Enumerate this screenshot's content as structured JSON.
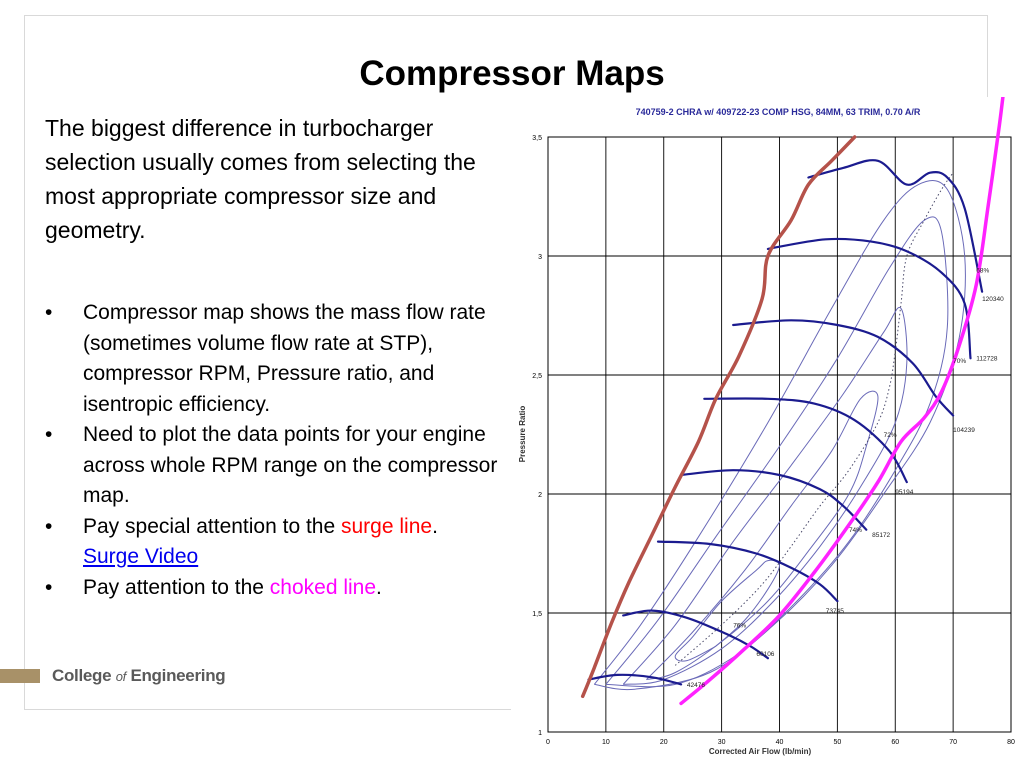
{
  "slide": {
    "title": "Compressor Maps",
    "intro": "The biggest difference in turbocharger selection usually comes from selecting the most appropriate compressor size and geometry.",
    "bullets": [
      {
        "text": "Compressor map shows the mass flow rate (sometimes volume flow rate at STP), compressor RPM, Pressure ratio, and isentropic efficiency."
      },
      {
        "text": "Need to plot the data points for your engine across whole RPM range on the compressor map."
      },
      {
        "pre": "Pay special attention to the ",
        "highlight": "surge line",
        "post": ".",
        "link": "Surge Video",
        "highlight_color": "#ff0000"
      },
      {
        "pre": "Pay attention to the ",
        "highlight": "choked line",
        "post": ".",
        "highlight_color": "#ff00ff"
      }
    ],
    "bullet_glyph": "•",
    "footer": {
      "college": "College",
      "of": "of",
      "engineering": "Engineering"
    }
  },
  "chart_data": {
    "type": "line",
    "title": "740759-2 CHRA w/ 409722-23 COMP HSG, 84MM, 63 TRIM, 0.70 A/R",
    "xlabel": "Corrected Air Flow (lb/min)",
    "ylabel": "Pressure Ratio",
    "xlim": [
      0,
      80
    ],
    "ylim": [
      1,
      3.5
    ],
    "xticks": [
      "0",
      "10",
      "20",
      "30",
      "40",
      "50",
      "60",
      "70",
      "80"
    ],
    "yticks": [
      "1",
      "1,5",
      "2",
      "2,5",
      "3",
      "3,5"
    ],
    "grid": true,
    "colors": {
      "speed": "#1b1b8f",
      "efficiency": "#6a6ab8",
      "surge": "#b5524a",
      "choke": "#ff22ff",
      "ops": "#4a4a6a"
    },
    "speed_lines": [
      {
        "label": "42476",
        "points": [
          [
            7,
            1.22
          ],
          [
            12,
            1.24
          ],
          [
            18,
            1.23
          ],
          [
            23,
            1.2
          ]
        ]
      },
      {
        "label": "60106",
        "points": [
          [
            13,
            1.49
          ],
          [
            18,
            1.51
          ],
          [
            24,
            1.48
          ],
          [
            31,
            1.41
          ],
          [
            35,
            1.36
          ],
          [
            38,
            1.31
          ]
        ]
      },
      {
        "label": "73745",
        "points": [
          [
            19,
            1.8
          ],
          [
            28,
            1.79
          ],
          [
            36,
            1.75
          ],
          [
            42,
            1.69
          ],
          [
            47,
            1.62
          ],
          [
            50,
            1.55
          ]
        ]
      },
      {
        "label": "85172",
        "points": [
          [
            23,
            2.08
          ],
          [
            32,
            2.1
          ],
          [
            40,
            2.08
          ],
          [
            47,
            2.02
          ],
          [
            51,
            1.95
          ],
          [
            55,
            1.85
          ]
        ]
      },
      {
        "label": "95194",
        "points": [
          [
            27,
            2.4
          ],
          [
            38,
            2.4
          ],
          [
            46,
            2.38
          ],
          [
            53,
            2.31
          ],
          [
            59,
            2.18
          ],
          [
            62,
            2.05
          ]
        ]
      },
      {
        "label": "104239",
        "points": [
          [
            32,
            2.71
          ],
          [
            42,
            2.73
          ],
          [
            50,
            2.71
          ],
          [
            57,
            2.66
          ],
          [
            63,
            2.55
          ],
          [
            67,
            2.41
          ],
          [
            70,
            2.33
          ]
        ]
      },
      {
        "label": "112728",
        "points": [
          [
            38,
            3.03
          ],
          [
            48,
            3.07
          ],
          [
            56,
            3.06
          ],
          [
            62,
            3.02
          ],
          [
            68,
            2.93
          ],
          [
            72,
            2.8
          ],
          [
            73,
            2.57
          ]
        ]
      },
      {
        "label": "120340",
        "points": [
          [
            45,
            3.33
          ],
          [
            51,
            3.37
          ],
          [
            57,
            3.4
          ],
          [
            62,
            3.3
          ],
          [
            66,
            3.35
          ],
          [
            69,
            3.33
          ],
          [
            72,
            3.2
          ],
          [
            75,
            2.85
          ]
        ]
      }
    ],
    "efficiency_islands": [
      {
        "label": "76%",
        "points": [
          [
            29,
            1.36
          ],
          [
            24,
            1.3
          ],
          [
            22,
            1.32
          ],
          [
            25,
            1.4
          ],
          [
            30,
            1.55
          ],
          [
            36,
            1.68
          ],
          [
            38,
            1.72
          ],
          [
            40,
            1.7
          ],
          [
            38,
            1.6
          ],
          [
            34,
            1.47
          ],
          [
            29,
            1.36
          ]
        ]
      },
      {
        "label": "74%",
        "points": [
          [
            17,
            1.22
          ],
          [
            25,
            1.42
          ],
          [
            34,
            1.68
          ],
          [
            42,
            1.95
          ],
          [
            49,
            2.18
          ],
          [
            54,
            2.4
          ],
          [
            57,
            2.41
          ],
          [
            55,
            2.2
          ],
          [
            52,
            2.0
          ],
          [
            45,
            1.76
          ],
          [
            38,
            1.55
          ],
          [
            30,
            1.38
          ],
          [
            22,
            1.25
          ],
          [
            17,
            1.22
          ]
        ]
      },
      {
        "label": "72%",
        "points": [
          [
            13,
            1.2
          ],
          [
            22,
            1.45
          ],
          [
            32,
            1.8
          ],
          [
            42,
            2.12
          ],
          [
            51,
            2.42
          ],
          [
            58,
            2.68
          ],
          [
            61,
            2.78
          ],
          [
            62,
            2.55
          ],
          [
            60,
            2.3
          ],
          [
            54,
            2.03
          ],
          [
            47,
            1.78
          ],
          [
            39,
            1.55
          ],
          [
            30,
            1.35
          ],
          [
            20,
            1.22
          ],
          [
            13,
            1.2
          ]
        ]
      },
      {
        "label": "70%",
        "points": [
          [
            10,
            1.2
          ],
          [
            19,
            1.47
          ],
          [
            29,
            1.82
          ],
          [
            40,
            2.2
          ],
          [
            50,
            2.57
          ],
          [
            59,
            2.95
          ],
          [
            65,
            3.15
          ],
          [
            68,
            3.1
          ],
          [
            69,
            2.7
          ],
          [
            66,
            2.38
          ],
          [
            60,
            2.1
          ],
          [
            52,
            1.8
          ],
          [
            43,
            1.55
          ],
          [
            33,
            1.33
          ],
          [
            22,
            1.2
          ],
          [
            10,
            1.2
          ]
        ]
      },
      {
        "label": "68%",
        "points": [
          [
            8,
            1.2
          ],
          [
            16,
            1.45
          ],
          [
            26,
            1.82
          ],
          [
            38,
            2.3
          ],
          [
            49,
            2.78
          ],
          [
            58,
            3.15
          ],
          [
            64,
            3.3
          ],
          [
            69,
            3.28
          ],
          [
            72,
            3.0
          ],
          [
            71,
            2.65
          ],
          [
            66,
            2.3
          ],
          [
            58,
            2.0
          ],
          [
            49,
            1.7
          ],
          [
            39,
            1.45
          ],
          [
            28,
            1.25
          ],
          [
            15,
            1.18
          ],
          [
            8,
            1.2
          ]
        ]
      }
    ],
    "efficiency_labels": [
      {
        "label": "76%",
        "x": 32,
        "y": 1.44
      },
      {
        "label": "74%",
        "x": 52,
        "y": 1.84
      },
      {
        "label": "72%",
        "x": 58,
        "y": 2.24
      },
      {
        "label": "70%",
        "x": 70,
        "y": 2.55
      },
      {
        "label": "68%",
        "x": 74,
        "y": 2.93
      }
    ],
    "speed_labels": [
      {
        "label": "42476",
        "x": 24,
        "y": 1.19
      },
      {
        "label": "60106",
        "x": 36,
        "y": 1.32
      },
      {
        "label": "73745",
        "x": 48,
        "y": 1.5
      },
      {
        "label": "85172",
        "x": 56,
        "y": 1.82
      },
      {
        "label": "95194",
        "x": 60,
        "y": 2.0
      },
      {
        "label": "104239",
        "x": 70,
        "y": 2.26
      },
      {
        "label": "112728",
        "x": 74,
        "y": 2.56
      },
      {
        "label": "120340",
        "x": 75,
        "y": 2.81
      }
    ],
    "surge_line": [
      [
        6,
        1.15
      ],
      [
        8,
        1.27
      ],
      [
        11,
        1.46
      ],
      [
        14,
        1.63
      ],
      [
        18,
        1.83
      ],
      [
        22,
        2.03
      ],
      [
        26,
        2.22
      ],
      [
        29,
        2.4
      ],
      [
        33,
        2.58
      ],
      [
        37,
        2.82
      ],
      [
        38,
        3.0
      ],
      [
        42,
        3.15
      ],
      [
        45,
        3.3
      ],
      [
        49,
        3.4
      ],
      [
        53,
        3.5
      ]
    ],
    "choke_line": [
      [
        23,
        1.12
      ],
      [
        28,
        1.22
      ],
      [
        34,
        1.35
      ],
      [
        40,
        1.49
      ],
      [
        46,
        1.67
      ],
      [
        52,
        1.87
      ],
      [
        57,
        2.05
      ],
      [
        61,
        2.22
      ],
      [
        65,
        2.32
      ],
      [
        68,
        2.43
      ],
      [
        71,
        2.62
      ],
      [
        74,
        2.88
      ],
      [
        76,
        3.2
      ],
      [
        78,
        3.55
      ],
      [
        79,
        3.75
      ]
    ],
    "operating_line": [
      [
        22,
        1.28
      ],
      [
        30,
        1.45
      ],
      [
        37,
        1.62
      ],
      [
        42,
        1.78
      ],
      [
        47,
        1.95
      ],
      [
        52,
        2.1
      ],
      [
        57,
        2.3
      ],
      [
        59,
        2.45
      ],
      [
        60,
        2.6
      ],
      [
        61,
        2.8
      ],
      [
        62,
        3.0
      ],
      [
        65,
        3.15
      ],
      [
        68,
        3.28
      ],
      [
        70,
        3.35
      ]
    ]
  }
}
